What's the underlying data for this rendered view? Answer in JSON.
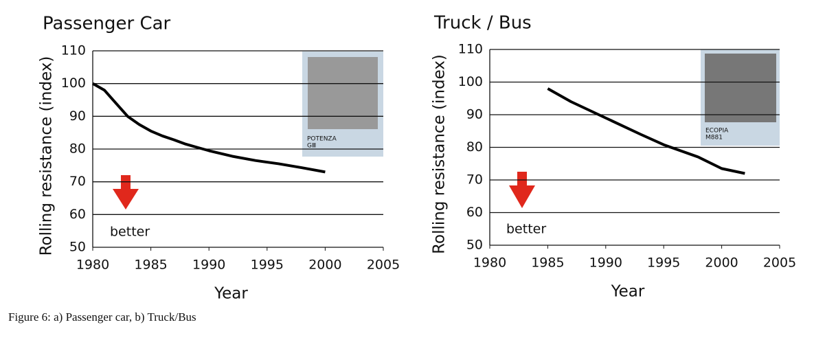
{
  "chart_data": [
    {
      "type": "line",
      "title": "Passenger Car",
      "ylabel": "Rolling resistance (index)",
      "xlabel": "Year",
      "x": [
        1980,
        1981,
        1982,
        1983,
        1984,
        1985,
        1986,
        1987,
        1988,
        1989,
        1990,
        1992,
        1994,
        1996,
        1998,
        2000
      ],
      "values": [
        100,
        98,
        94,
        90,
        87.5,
        85.5,
        84,
        82.8,
        81.5,
        80.5,
        79.5,
        77.8,
        76.5,
        75.5,
        74.3,
        73
      ],
      "color": "#000000",
      "xlim": [
        1980,
        2005
      ],
      "xticks": [
        1980,
        1985,
        1990,
        1995,
        2000,
        2005
      ],
      "ylim": [
        50,
        110
      ],
      "yticks": [
        50,
        60,
        70,
        80,
        90,
        100,
        110
      ],
      "grid": true,
      "annotation": "better",
      "image_caption": [
        "POTENZA",
        "GⅢ"
      ]
    },
    {
      "type": "line",
      "title": "Truck / Bus",
      "ylabel": "Rolling resistance (index)",
      "xlabel": "Year",
      "x": [
        1985,
        1987,
        1990,
        1993,
        1995,
        1998,
        2000,
        2002
      ],
      "values": [
        98,
        94,
        89,
        84,
        80.8,
        77,
        73.5,
        72
      ],
      "color": "#000000",
      "xlim": [
        1980,
        2005
      ],
      "xticks": [
        1980,
        1985,
        1990,
        1995,
        2000,
        2005
      ],
      "ylim": [
        50,
        110
      ],
      "yticks": [
        50,
        60,
        70,
        80,
        90,
        100,
        110
      ],
      "grid": true,
      "annotation": "better",
      "image_caption": [
        "ECOPIA",
        "M881"
      ]
    }
  ],
  "caption": "Figure 6:  a) Passenger car, b) Truck/Bus"
}
